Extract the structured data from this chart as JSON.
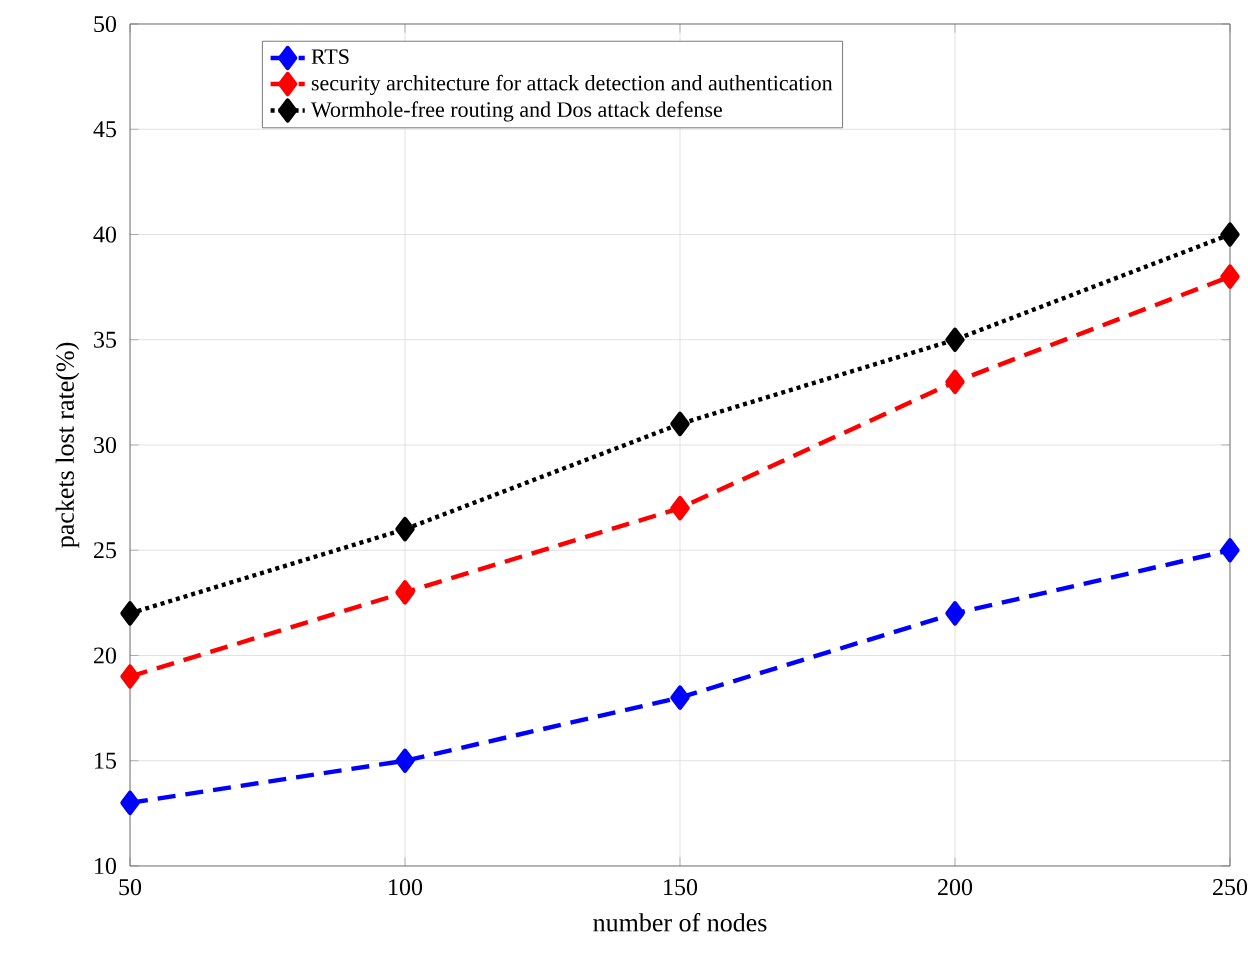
{
  "chart_data": {
    "type": "line",
    "xlabel": "number of nodes",
    "ylabel": "packets lost rate(%)",
    "x": [
      50,
      100,
      150,
      200,
      250
    ],
    "series": [
      {
        "name": "RTS",
        "color": "#0000ff",
        "values": [
          13,
          15,
          18,
          22,
          25
        ],
        "line_style": "dashed"
      },
      {
        "name": "security architecture for attack detection and authentication",
        "color": "#ff0000",
        "values": [
          19,
          23,
          27,
          33,
          38
        ],
        "line_style": "dashed"
      },
      {
        "name": "Wormhole-free routing and Dos attack defense",
        "color": "#000000",
        "values": [
          22,
          26,
          31,
          35,
          40
        ],
        "line_style": "dotted"
      }
    ],
    "xlim": [
      50,
      250
    ],
    "xticks": [
      50,
      100,
      150,
      200,
      250
    ],
    "ylim": [
      10,
      50
    ],
    "yticks": [
      10,
      15,
      20,
      25,
      30,
      35,
      40,
      45,
      50
    ],
    "grid": true,
    "legend": "top left",
    "marker": "diamond"
  }
}
